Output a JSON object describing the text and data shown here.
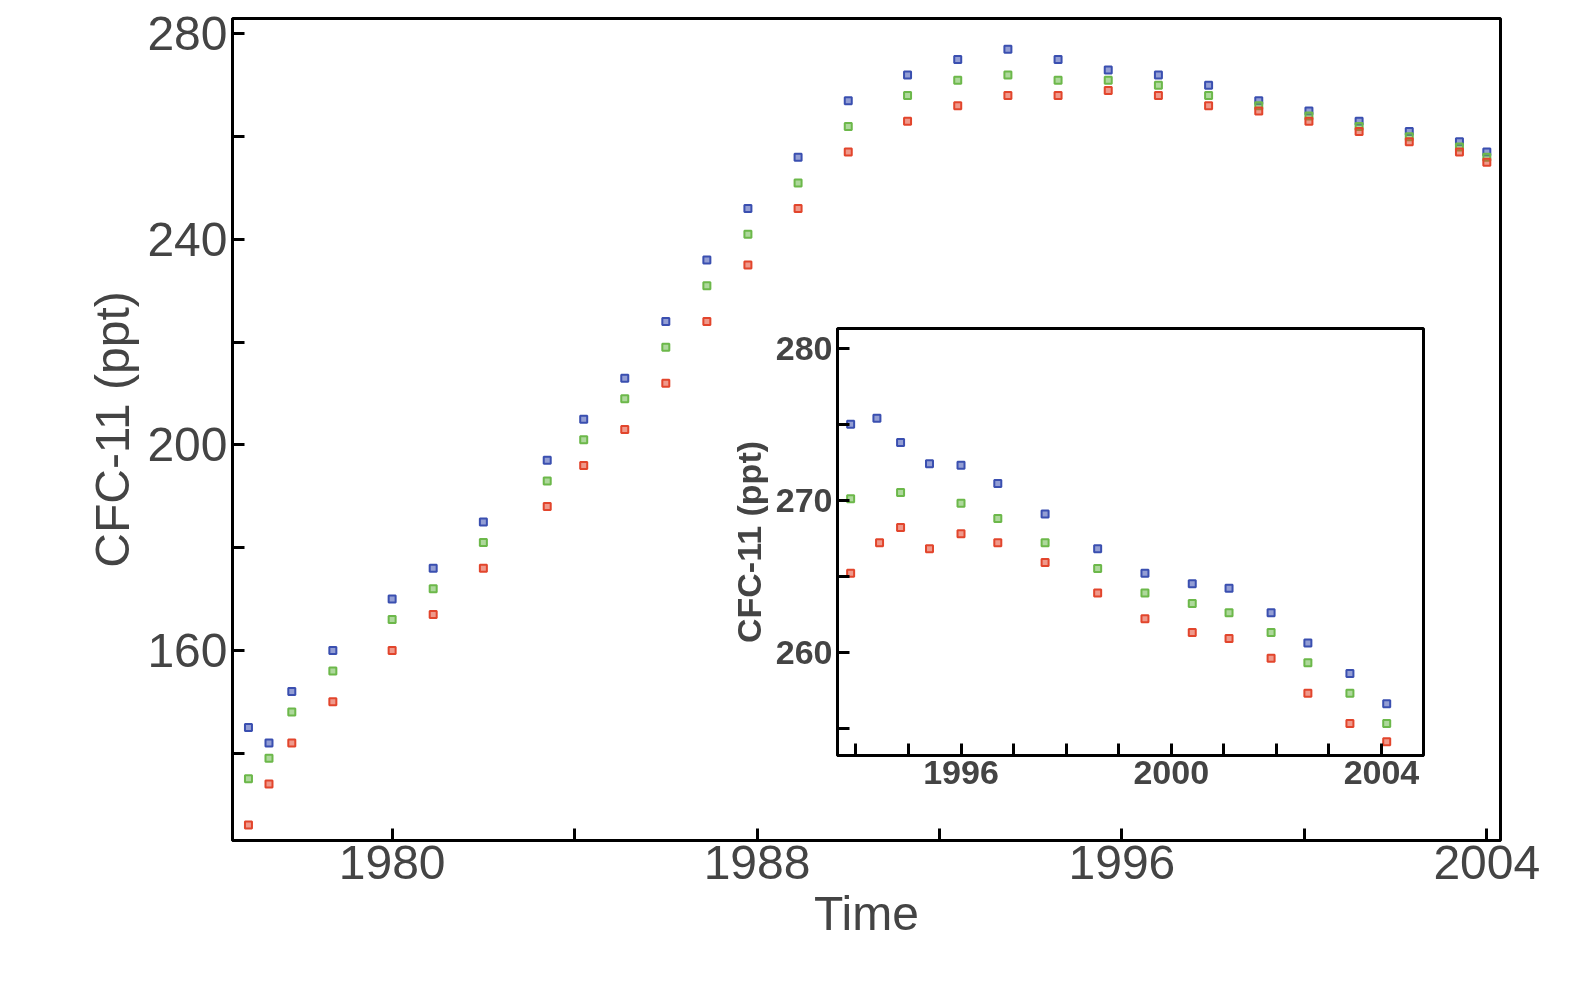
{
  "chart_data": [
    {
      "type": "scatter",
      "xlabel": "Time",
      "ylabel": "CFC-11 (ppt)",
      "marker": "square",
      "xlim": [
        1976.5,
        2004.3
      ],
      "ylim": [
        123,
        283
      ],
      "xticks": [
        1980,
        {
          "value": 1984,
          "label": null
        },
        1988,
        {
          "value": 1992,
          "label": null
        },
        1996,
        {
          "value": 2000,
          "label": null
        },
        2004
      ],
      "yticks": [
        {
          "value": 140,
          "label": null
        },
        160,
        {
          "value": 180,
          "label": null
        },
        200,
        {
          "value": 220,
          "label": null
        },
        240,
        {
          "value": 260,
          "label": null
        },
        280
      ],
      "series": [
        {
          "color": "#3a4fb0",
          "x": [
            1976.85,
            1977.3,
            1977.8,
            1978.7,
            1980,
            1980.9,
            1982,
            1983.4,
            1984.2,
            1985.1,
            1986,
            1986.9,
            1987.8,
            1988.9,
            1990,
            1991.3,
            1992.4,
            1993.5,
            1994.6,
            1995.7,
            1996.8,
            1997.9,
            1999,
            2000.1,
            2001.2,
            2002.3,
            2003.4,
            2004
          ],
          "values": [
            145,
            142,
            152,
            160,
            170,
            176,
            185,
            197,
            205,
            213,
            224,
            236,
            246,
            256,
            267,
            272,
            275,
            277,
            275,
            273,
            272,
            270,
            267,
            265,
            263,
            261,
            259,
            257
          ]
        },
        {
          "color": "#6cb84a",
          "x": [
            1976.85,
            1977.3,
            1977.8,
            1978.7,
            1980,
            1980.9,
            1982,
            1983.4,
            1984.2,
            1985.1,
            1986,
            1986.9,
            1987.8,
            1988.9,
            1990,
            1991.3,
            1992.4,
            1993.5,
            1994.6,
            1995.7,
            1996.8,
            1997.9,
            1999,
            2000.1,
            2001.2,
            2002.3,
            2003.4,
            2004
          ],
          "values": [
            135,
            139,
            148,
            156,
            166,
            172,
            181,
            193,
            201,
            209,
            219,
            231,
            241,
            251,
            262,
            268,
            271,
            272,
            271,
            271,
            270,
            268,
            266,
            264,
            262,
            260,
            258,
            256
          ]
        },
        {
          "color": "#e2452c",
          "x": [
            1976.85,
            1977.3,
            1977.8,
            1978.7,
            1980,
            1980.9,
            1982,
            1983.4,
            1984.2,
            1985.1,
            1986,
            1986.9,
            1987.8,
            1988.9,
            1990,
            1991.3,
            1992.4,
            1993.5,
            1994.6,
            1995.7,
            1996.8,
            1997.9,
            1999,
            2000.1,
            2001.2,
            2002.3,
            2003.4,
            2004
          ],
          "values": [
            126,
            134,
            142,
            150,
            160,
            167,
            176,
            188,
            196,
            203,
            212,
            224,
            235,
            246,
            257,
            263,
            266,
            268,
            268,
            269,
            268,
            266,
            265,
            263,
            261,
            259,
            257,
            255
          ]
        }
      ]
    },
    {
      "type": "scatter",
      "ylabel": "CFC-11 (ppt)",
      "marker": "square",
      "xlim": [
        1993.65,
        2004.8
      ],
      "ylim": [
        253.2,
        281.3
      ],
      "xticks": [
        {
          "value": 1994,
          "label": null
        },
        {
          "value": 1995,
          "label": null
        },
        1996,
        {
          "value": 1997,
          "label": null
        },
        {
          "value": 1998,
          "label": null
        },
        {
          "value": 1999,
          "label": null
        },
        2000,
        {
          "value": 2001,
          "label": null
        },
        {
          "value": 2002,
          "label": null
        },
        {
          "value": 2003,
          "label": null
        },
        2004
      ],
      "yticks": [
        {
          "value": 255,
          "label": null
        },
        260,
        {
          "value": 265,
          "label": null
        },
        270,
        {
          "value": 275,
          "label": null
        },
        280
      ],
      "series": [
        {
          "color": "#3a4fb0",
          "x": [
            1993.9,
            1994.4,
            1994.85,
            1995.4,
            1996,
            1996.7,
            1997.6,
            1998.6,
            1999.5,
            2000.4,
            2001.1,
            2001.9,
            2002.6,
            2003.4,
            2004.1
          ],
          "values": [
            275,
            275.4,
            273.8,
            272.4,
            272.3,
            271.1,
            269.1,
            266.8,
            265.2,
            264.5,
            264.2,
            262.6,
            260.6,
            258.6,
            256.6
          ]
        },
        {
          "color": "#6cb84a",
          "x": [
            1993.9,
            1994.85,
            1996,
            1996.7,
            1997.6,
            1998.6,
            1999.5,
            2000.4,
            2001.1,
            2001.9,
            2002.6,
            2003.4,
            2004.1
          ],
          "values": [
            270.1,
            270.5,
            269.8,
            268.8,
            267.2,
            265.5,
            263.9,
            263.2,
            262.6,
            261.3,
            259.3,
            257.3,
            255.3
          ]
        },
        {
          "color": "#e2452c",
          "x": [
            1993.9,
            1994.45,
            1994.85,
            1995.4,
            1996,
            1996.7,
            1997.6,
            1998.6,
            1999.5,
            2000.4,
            2001.1,
            2001.9,
            2002.6,
            2003.4,
            2004.1
          ],
          "values": [
            265.2,
            267.2,
            268.2,
            266.8,
            267.8,
            267.2,
            265.9,
            263.9,
            262.2,
            261.3,
            260.9,
            259.6,
            257.3,
            255.3,
            254.1
          ]
        }
      ]
    }
  ]
}
